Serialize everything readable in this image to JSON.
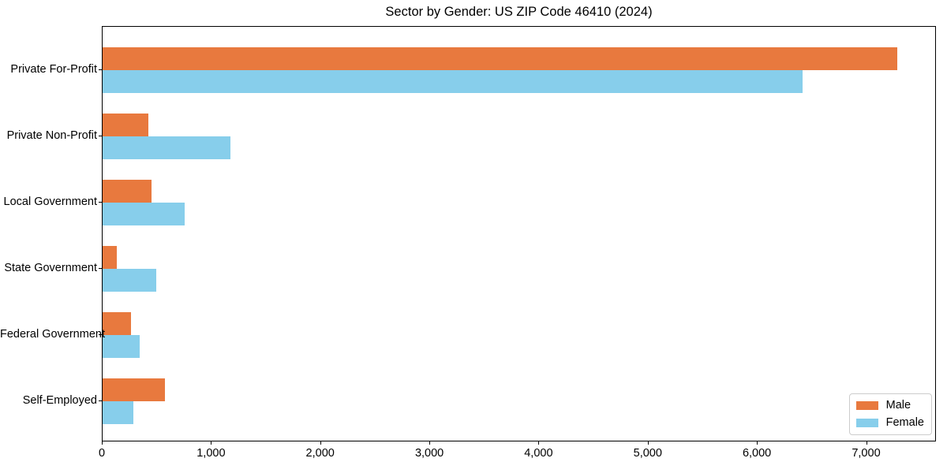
{
  "title": "Sector by Gender: US ZIP Code 46410 (2024)",
  "chart_data": {
    "type": "bar",
    "orientation": "horizontal",
    "title": "Sector by Gender: US ZIP Code 46410 (2024)",
    "categories": [
      "Private For-Profit",
      "Private Non-Profit",
      "Local Government",
      "State Government",
      "Federal Government",
      "Self-Employed"
    ],
    "series": [
      {
        "name": "Male",
        "color": "#e8793e",
        "values": [
          7280,
          420,
          450,
          130,
          260,
          570
        ]
      },
      {
        "name": "Female",
        "color": "#87ceeb",
        "values": [
          6410,
          1170,
          750,
          490,
          340,
          280
        ]
      }
    ],
    "xlim": [
      0,
      7640
    ],
    "x_ticks": [
      0,
      1000,
      2000,
      3000,
      4000,
      5000,
      6000,
      7000
    ],
    "x_tick_labels": [
      "0",
      "1,000",
      "2,000",
      "3,000",
      "4,000",
      "5,000",
      "6,000",
      "7,000"
    ],
    "xlabel": "",
    "ylabel": "",
    "grid": false,
    "legend_position": "lower right",
    "axis_color": "#000000",
    "background_color": "#ffffff"
  }
}
